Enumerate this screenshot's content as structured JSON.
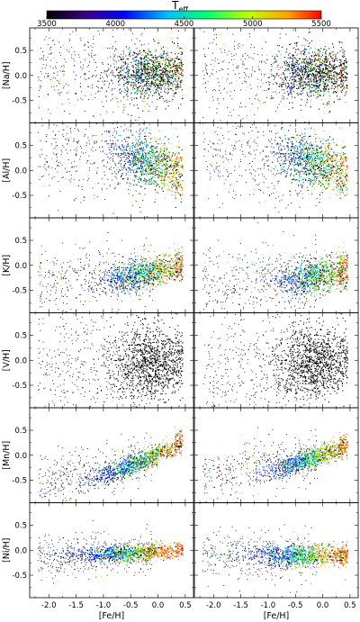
{
  "chart_data": {
    "type": "scatter",
    "colorbar": {
      "title": "T",
      "title_subscript": "eff",
      "range": [
        3500,
        5500
      ],
      "ticks": [
        3500,
        4000,
        4500,
        5000,
        5500
      ],
      "tick_labels": [
        "3500",
        "4000",
        "4500",
        "5000",
        "5500"
      ],
      "colormap": [
        "#000000",
        "#3b0080",
        "#0000ff",
        "#00c0ff",
        "#00ff70",
        "#c0ff00",
        "#ffa000",
        "#ff0000"
      ]
    },
    "xlabel": "[Fe/H]",
    "xlim": [
      -2.35,
      0.65
    ],
    "xticks": [
      -2.0,
      -1.5,
      -1.0,
      -0.5,
      0.0,
      0.5
    ],
    "xtick_labels": [
      "-2.0",
      "-1.5",
      "-1.0",
      "-0.5",
      "0.0",
      "0.5"
    ],
    "ylim": [
      -0.95,
      0.95
    ],
    "yticks": [
      0.5,
      0.0,
      -0.5
    ],
    "ytick_labels": [
      "0.5",
      "0.0",
      "-0.5"
    ],
    "grid": false,
    "panels": [
      {
        "ylabel": "[Na/H]",
        "left": {
          "x_center": -0.1,
          "y_center": 0.05,
          "spread_x": 0.35,
          "spread_y": 0.25,
          "cool_frac": 0.7,
          "trend": 0.0
        },
        "right": {
          "x_center": -0.1,
          "y_center": 0.05,
          "spread_x": 0.35,
          "spread_y": 0.25,
          "cool_frac": 0.75,
          "trend": 0.0
        }
      },
      {
        "ylabel": "[Al/H]",
        "left": {
          "x_center": -0.1,
          "y_center": 0.15,
          "spread_x": 0.35,
          "spread_y": 0.25,
          "cool_frac": 0.3,
          "trend": -0.3
        },
        "right": {
          "x_center": -0.1,
          "y_center": 0.15,
          "spread_x": 0.35,
          "spread_y": 0.25,
          "cool_frac": 0.3,
          "trend": -0.3
        }
      },
      {
        "ylabel": "[K/H]",
        "left": {
          "x_center": -0.2,
          "y_center": -0.15,
          "spread_x": 0.4,
          "spread_y": 0.15,
          "cool_frac": 0.25,
          "trend": 0.2
        },
        "right": {
          "x_center": -0.1,
          "y_center": -0.2,
          "spread_x": 0.4,
          "spread_y": 0.18,
          "cool_frac": 0.25,
          "trend": 0.15
        }
      },
      {
        "ylabel": "[V/H]",
        "left": {
          "x_center": -0.15,
          "y_center": -0.05,
          "spread_x": 0.35,
          "spread_y": 0.35,
          "cool_frac": 1.0,
          "trend": 0.1
        },
        "right": {
          "x_center": -0.15,
          "y_center": -0.05,
          "spread_x": 0.35,
          "spread_y": 0.35,
          "cool_frac": 1.0,
          "trend": 0.1
        }
      },
      {
        "ylabel": "[Mn/H]",
        "left": {
          "x_center": -0.3,
          "y_center": -0.1,
          "spread_x": 0.45,
          "spread_y": 0.1,
          "cool_frac": 0.2,
          "trend": 0.45
        },
        "right": {
          "x_center": -0.2,
          "y_center": -0.05,
          "spread_x": 0.4,
          "spread_y": 0.1,
          "cool_frac": 0.15,
          "trend": 0.35
        }
      },
      {
        "ylabel": "[Ni/H]",
        "left": {
          "x_center": -0.5,
          "y_center": -0.05,
          "spread_x": 0.55,
          "spread_y": 0.08,
          "cool_frac": 0.2,
          "trend": 0.05
        },
        "right": {
          "x_center": -0.3,
          "y_center": -0.1,
          "spread_x": 0.5,
          "spread_y": 0.1,
          "cool_frac": 0.15,
          "trend": 0.0
        }
      }
    ]
  }
}
